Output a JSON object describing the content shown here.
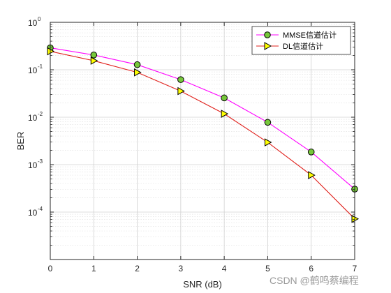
{
  "chart_data": {
    "type": "line",
    "xlabel": "SNR (dB)",
    "ylabel": "BER",
    "xlim": [
      0,
      7
    ],
    "ylim": [
      1e-05,
      1
    ],
    "y_scale": "log",
    "grid": true,
    "minor_grid": true,
    "x_ticks": [
      "0",
      "1",
      "2",
      "3",
      "4",
      "5",
      "6",
      "7"
    ],
    "y_tick_exponents": [
      "0",
      "-1",
      "-2",
      "-3",
      "-4"
    ],
    "y_tick_base": "10",
    "x": [
      0,
      1,
      2,
      3,
      4,
      5,
      6,
      7
    ],
    "series": [
      {
        "name": "MMSE信道估计",
        "values": [
          0.29,
          0.205,
          0.128,
          0.062,
          0.0255,
          0.0078,
          0.00185,
          0.000305
        ],
        "color": "#ff00ff",
        "marker": "circle",
        "marker_fill": "#77c73b"
      },
      {
        "name": "DL信道估计",
        "values": [
          0.245,
          0.155,
          0.088,
          0.0355,
          0.0118,
          0.00295,
          0.0006,
          7.2e-05
        ],
        "color": "#e0201b",
        "marker": "triangle-right",
        "marker_fill": "#ffff00"
      }
    ],
    "legend_position": "top-right"
  },
  "watermark": "CSDN @鹤鸣蔡编程"
}
